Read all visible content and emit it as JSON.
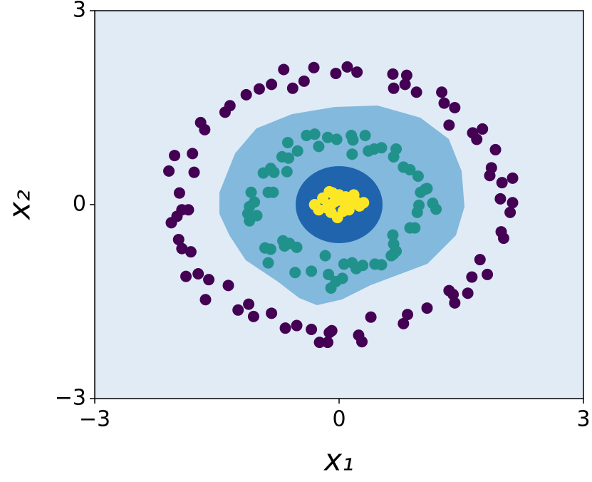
{
  "chart_data": {
    "type": "scatter",
    "xlabel": "x₁",
    "ylabel": "x₂",
    "xlim": [
      -3,
      3
    ],
    "ylim": [
      -3,
      3
    ],
    "xticks": [
      {
        "value": -3,
        "label": "−3"
      },
      0,
      3
    ],
    "yticks": [
      {
        "value": -3,
        "label": "−3"
      },
      0,
      3
    ],
    "series": [
      {
        "color": "#440154",
        "x": [
          -0.68,
          -0.31,
          -0.04,
          0.1,
          0.22,
          0.66,
          0.83,
          -0.43,
          -0.57,
          -0.83,
          -0.98,
          -1.14,
          0.67,
          0.81,
          0.95,
          1.26,
          1.29,
          1.42,
          -1.34,
          -1.4,
          -1.7,
          -1.65,
          1.35,
          1.64,
          1.76,
          1.69,
          1.92,
          -2.02,
          -1.8,
          1.87,
          1.85,
          -2.09,
          -1.78,
          2.13,
          2.0,
          -1.96,
          1.98,
          2.13,
          2.1,
          -1.93,
          -1.85,
          -1.99,
          -2.06,
          1.99,
          2.02,
          -1.97,
          -1.93,
          -1.82,
          1.73,
          1.82,
          -1.88,
          -1.73,
          -1.6,
          1.63,
          -1.64,
          1.35,
          1.4,
          1.42,
          1.58,
          -1.36,
          -1.24,
          -1.11,
          -1.05,
          -0.83,
          1.08,
          0.84,
          0.79,
          -0.66,
          -0.52,
          -0.34,
          -0.12,
          -0.09,
          -0.24,
          -0.14,
          0.24,
          0.28,
          0.39
        ],
        "y": [
          2.09,
          2.12,
          2.03,
          2.13,
          2.05,
          2.02,
          2.0,
          1.91,
          1.8,
          1.86,
          1.79,
          1.7,
          1.8,
          1.86,
          1.74,
          1.74,
          1.57,
          1.5,
          1.53,
          1.43,
          1.27,
          1.16,
          1.23,
          1.11,
          1.17,
          1.01,
          0.85,
          0.76,
          0.79,
          0.57,
          0.45,
          0.52,
          0.5,
          0.41,
          0.34,
          0.18,
          0.09,
          0.03,
          -0.12,
          -0.08,
          -0.08,
          -0.18,
          -0.28,
          -0.42,
          -0.52,
          -0.54,
          -0.68,
          -0.73,
          -0.85,
          -1.08,
          -1.11,
          -1.07,
          -1.16,
          -1.12,
          -1.47,
          -1.33,
          -1.39,
          -1.52,
          -1.37,
          -1.25,
          -1.63,
          -1.54,
          -1.73,
          -1.68,
          -1.6,
          -1.7,
          -1.84,
          -1.91,
          -1.87,
          -1.93,
          -1.98,
          -1.95,
          -2.13,
          -2.13,
          -2.02,
          -2.12,
          -1.74
        ]
      },
      {
        "color": "#21918c",
        "x": [
          -0.63,
          -0.4,
          -0.3,
          -0.14,
          0.15,
          0.32,
          -0.03,
          0.17,
          -0.25,
          -0.51,
          -0.7,
          -0.62,
          -0.84,
          -0.93,
          -0.8,
          -0.64,
          0.36,
          0.43,
          0.52,
          0.7,
          0.67,
          0.16,
          0.79,
          0.87,
          0.97,
          1.06,
          1.0,
          1.15,
          1.19,
          0.98,
          0.96,
          0.93,
          0.87,
          0.66,
          0.67,
          1.08,
          -1.08,
          -1.04,
          -1.1,
          -1.12,
          -1.01,
          -1.1,
          -0.87,
          -0.81,
          -0.69,
          -0.61,
          -0.67,
          -0.91,
          -0.84,
          -0.52,
          -0.87,
          -0.54,
          -0.34,
          -0.13,
          -0.1,
          -0.04,
          0.06,
          0.16,
          0.21,
          0.29,
          0.44,
          0.52,
          0.64,
          0.67,
          0.7,
          -0.17,
          0.04
        ],
        "y": [
          0.96,
          1.07,
          1.09,
          1.04,
          1.07,
          1.07,
          1.01,
          1.0,
          0.9,
          0.83,
          0.74,
          0.72,
          0.56,
          0.49,
          0.5,
          0.51,
          0.83,
          0.86,
          0.88,
          0.86,
          0.74,
          0.78,
          0.58,
          0.54,
          0.44,
          0.24,
          0.19,
          0.02,
          -0.07,
          -0.01,
          -0.12,
          -0.36,
          -0.36,
          -0.47,
          -0.61,
          0.25,
          0.19,
          0.04,
          -0.03,
          -0.14,
          -0.17,
          -0.25,
          0.19,
          0.19,
          -0.56,
          -0.6,
          -0.64,
          -0.67,
          -0.69,
          -0.66,
          -0.9,
          -1.05,
          -1.03,
          -1.08,
          -1.29,
          -1.19,
          -0.92,
          -0.9,
          -0.99,
          -0.94,
          -0.92,
          -0.93,
          -0.79,
          -0.76,
          -0.72,
          -0.79,
          -1.14
        ]
      },
      {
        "color": "#fde725",
        "x": [
          0.0,
          -0.05,
          0.05,
          0.1,
          -0.1,
          -0.15,
          0.15,
          0.2,
          -0.2,
          0.0,
          -0.08,
          0.08,
          0.25,
          0.3,
          -0.25,
          -0.1,
          0.05,
          -0.02,
          0.12,
          -0.3,
          0.18,
          -0.12
        ],
        "y": [
          0.1,
          0.05,
          0.05,
          0.0,
          0.0,
          -0.05,
          0.02,
          0.05,
          0.1,
          0.15,
          0.18,
          0.12,
          -0.02,
          0.03,
          -0.08,
          -0.12,
          -0.1,
          -0.2,
          -0.08,
          0.0,
          0.15,
          0.2
        ]
      }
    ]
  }
}
